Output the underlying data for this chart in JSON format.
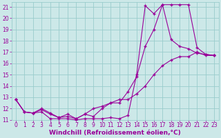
{
  "bg_color": "#cce8e8",
  "line_color": "#990099",
  "grid_color": "#99cccc",
  "xlabel": "Windchill (Refroidissement éolien,°C)",
  "xlim": [
    -0.5,
    23.5
  ],
  "ylim": [
    11,
    21.4
  ],
  "yticks": [
    11,
    12,
    13,
    14,
    15,
    16,
    17,
    18,
    19,
    20,
    21
  ],
  "xticks": [
    0,
    1,
    2,
    3,
    4,
    5,
    6,
    7,
    8,
    9,
    10,
    11,
    12,
    13,
    14,
    15,
    16,
    17,
    18,
    19,
    20,
    21,
    22,
    23
  ],
  "line1_x": [
    0,
    1,
    2,
    3,
    4,
    5,
    6,
    7,
    8,
    9,
    10,
    11,
    12,
    13,
    14,
    15,
    16,
    17,
    18,
    19,
    20,
    21,
    22,
    23
  ],
  "line1_y": [
    12.8,
    11.7,
    11.6,
    11.7,
    11.1,
    11.1,
    11.1,
    11.0,
    11.1,
    11.1,
    11.1,
    11.2,
    11.1,
    11.4,
    15.0,
    21.1,
    20.4,
    21.2,
    21.2,
    21.2,
    21.2,
    17.4,
    16.8,
    16.7
  ],
  "line2_x": [
    0,
    1,
    2,
    3,
    4,
    5,
    6,
    7,
    8,
    9,
    10,
    11,
    12,
    13,
    14,
    15,
    16,
    17,
    18,
    19,
    20,
    21,
    22,
    23
  ],
  "line2_y": [
    12.8,
    11.7,
    11.6,
    11.9,
    11.5,
    11.2,
    11.3,
    11.1,
    11.5,
    11.3,
    12.0,
    12.5,
    12.5,
    13.5,
    14.8,
    17.5,
    19.0,
    21.2,
    18.1,
    17.5,
    17.3,
    16.9,
    16.8,
    16.7
  ],
  "line3_x": [
    0,
    1,
    2,
    3,
    4,
    5,
    6,
    7,
    8,
    9,
    10,
    11,
    12,
    13,
    14,
    15,
    16,
    17,
    18,
    19,
    20,
    21,
    22,
    23
  ],
  "line3_y": [
    12.8,
    11.7,
    11.6,
    12.0,
    11.6,
    11.2,
    11.5,
    11.1,
    11.5,
    12.0,
    12.2,
    12.5,
    12.8,
    12.8,
    13.3,
    14.0,
    15.0,
    15.8,
    16.3,
    16.6,
    16.6,
    17.0,
    16.7,
    16.7
  ],
  "tick_fontsize": 5.5,
  "xlabel_fontsize": 6.5,
  "marker": "+",
  "markersize": 3.0,
  "linewidth": 0.8
}
